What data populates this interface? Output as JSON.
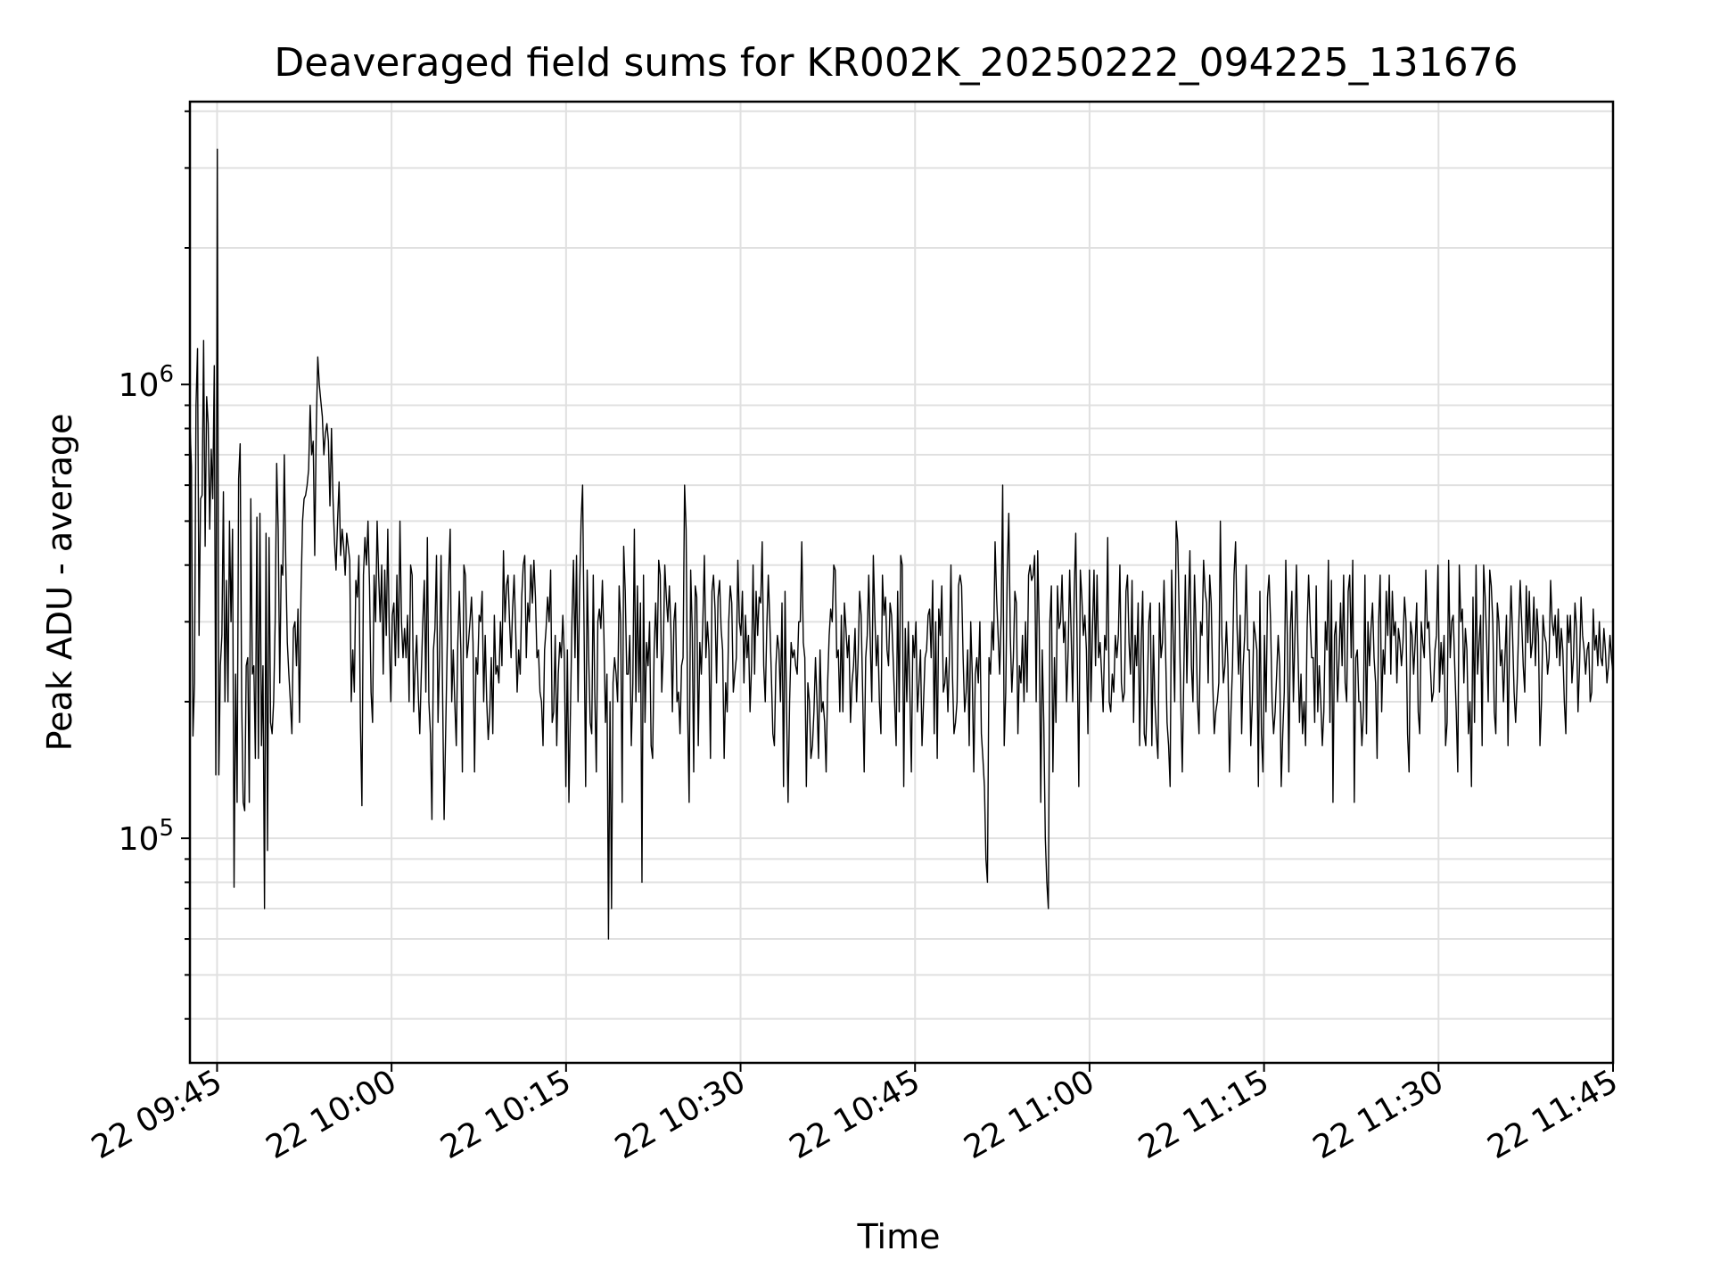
{
  "chart_data": {
    "type": "line",
    "title": "Deaveraged field sums for KR002K_20250222_094225_131676",
    "xlabel": "Time",
    "ylabel": "Peak ADU - average",
    "x_tick_labels": [
      "22 09:45",
      "22 10:00",
      "22 10:15",
      "22 10:30",
      "22 10:45",
      "22 11:00",
      "22 11:15",
      "22 11:30",
      "22 11:45"
    ],
    "y_tick_labels": [
      {
        "base": "10",
        "exp": "5",
        "value": 100000
      },
      {
        "base": "10",
        "exp": "6",
        "value": 1000000
      }
    ],
    "y_scale": "log",
    "ylim": [
      32000,
      4200000
    ],
    "xlim": [
      "2025-02-22T09:42:40",
      "2025-02-22T11:45:00"
    ],
    "grid": true,
    "line_color": "#000000",
    "series": [
      {
        "x_start": "2025-02-22T09:42:40",
        "x_end": "2025-02-22T11:45:00",
        "values": [
          820000,
          660000,
          168000,
          220000,
          900000,
          1200000,
          280000,
          560000,
          570000,
          1250000,
          440000,
          940000,
          820000,
          480000,
          720000,
          560000,
          1100000,
          138000,
          3300000,
          138000,
          240000,
          280000,
          580000,
          200000,
          370000,
          200000,
          500000,
          300000,
          480000,
          78000,
          230000,
          120000,
          620000,
          740000,
          200000,
          120000,
          115000,
          240000,
          250000,
          120000,
          560000,
          230000,
          240000,
          150000,
          510000,
          150000,
          520000,
          160000,
          240000,
          70000,
          470000,
          94000,
          460000,
          180000,
          170000,
          200000,
          300000,
          670000,
          480000,
          220000,
          400000,
          380000,
          700000,
          400000,
          270000,
          230000,
          200000,
          170000,
          290000,
          300000,
          240000,
          320000,
          180000,
          350000,
          500000,
          560000,
          570000,
          600000,
          650000,
          900000,
          700000,
          750000,
          420000,
          800000,
          1150000,
          1000000,
          920000,
          850000,
          700000,
          780000,
          820000,
          750000,
          540000,
          800000,
          560000,
          450000,
          390000,
          500000,
          610000,
          420000,
          480000,
          440000,
          380000,
          470000,
          440000,
          410000,
          200000,
          260000,
          210000,
          370000,
          340000,
          420000,
          180000,
          118000,
          380000,
          460000,
          400000,
          500000,
          360000,
          210000,
          180000,
          380000,
          300000,
          500000,
          380000,
          300000,
          400000,
          230000,
          390000,
          280000,
          480000,
          280000,
          200000,
          310000,
          330000,
          240000,
          380000,
          250000,
          500000,
          300000,
          250000,
          290000,
          250000,
          310000,
          200000,
          400000,
          380000,
          190000,
          240000,
          280000,
          210000,
          170000,
          230000,
          300000,
          370000,
          210000,
          460000,
          200000,
          170000,
          110000,
          260000,
          290000,
          420000,
          180000,
          250000,
          420000,
          210000,
          110000,
          170000,
          260000,
          380000,
          480000,
          200000,
          260000,
          200000,
          160000,
          270000,
          350000,
          260000,
          140000,
          400000,
          380000,
          250000,
          270000,
          300000,
          340000,
          270000,
          140000,
          250000,
          230000,
          310000,
          300000,
          350000,
          200000,
          280000,
          200000,
          165000,
          190000,
          250000,
          170000,
          310000,
          230000,
          240000,
          220000,
          300000,
          240000,
          430000,
          300000,
          360000,
          380000,
          300000,
          250000,
          320000,
          380000,
          290000,
          210000,
          260000,
          230000,
          340000,
          400000,
          420000,
          250000,
          330000,
          300000,
          400000,
          330000,
          410000,
          340000,
          250000,
          260000,
          210000,
          200000,
          160000,
          260000,
          290000,
          340000,
          300000,
          390000,
          180000,
          190000,
          280000,
          160000,
          230000,
          270000,
          250000,
          310000,
          250000,
          130000,
          260000,
          120000,
          190000,
          300000,
          410000,
          250000,
          420000,
          200000,
          350000,
          500000,
          600000,
          280000,
          130000,
          390000,
          250000,
          180000,
          170000,
          380000,
          210000,
          140000,
          300000,
          320000,
          290000,
          370000,
          280000,
          180000,
          230000,
          60000,
          200000,
          70000,
          220000,
          250000,
          230000,
          200000,
          360000,
          300000,
          120000,
          440000,
          350000,
          230000,
          230000,
          280000,
          160000,
          220000,
          480000,
          200000,
          360000,
          210000,
          330000,
          80000,
          380000,
          180000,
          270000,
          240000,
          300000,
          160000,
          150000,
          260000,
          330000,
          250000,
          410000,
          380000,
          210000,
          260000,
          400000,
          340000,
          300000,
          360000,
          290000,
          190000,
          300000,
          330000,
          200000,
          210000,
          170000,
          240000,
          250000,
          600000,
          480000,
          190000,
          120000,
          390000,
          290000,
          140000,
          360000,
          340000,
          160000,
          270000,
          230000,
          300000,
          420000,
          250000,
          300000,
          260000,
          150000,
          350000,
          380000,
          320000,
          220000,
          340000,
          370000,
          290000,
          260000,
          150000,
          220000,
          190000,
          300000,
          360000,
          330000,
          210000,
          230000,
          250000,
          410000,
          300000,
          280000,
          350000,
          220000,
          310000,
          250000,
          280000,
          190000,
          240000,
          400000,
          230000,
          350000,
          280000,
          340000,
          330000,
          450000,
          240000,
          200000,
          290000,
          380000,
          300000,
          230000,
          170000,
          160000,
          240000,
          280000,
          260000,
          200000,
          330000,
          130000,
          350000,
          190000,
          120000,
          200000,
          270000,
          250000,
          260000,
          240000,
          230000,
          300000,
          300000,
          450000,
          270000,
          250000,
          130000,
          220000,
          200000,
          150000,
          160000,
          190000,
          250000,
          200000,
          150000,
          260000,
          190000,
          200000,
          180000,
          140000,
          220000,
          280000,
          320000,
          300000,
          400000,
          390000,
          250000,
          260000,
          190000,
          310000,
          190000,
          330000,
          290000,
          250000,
          280000,
          180000,
          220000,
          240000,
          290000,
          200000,
          250000,
          350000,
          310000,
          210000,
          140000,
          250000,
          280000,
          380000,
          270000,
          200000,
          420000,
          310000,
          240000,
          280000,
          200000,
          170000,
          380000,
          310000,
          340000,
          260000,
          240000,
          330000,
          310000,
          250000,
          200000,
          160000,
          350000,
          190000,
          420000,
          400000,
          130000,
          290000,
          200000,
          300000,
          210000,
          140000,
          280000,
          250000,
          300000,
          190000,
          220000,
          260000,
          160000,
          200000,
          250000,
          260000,
          310000,
          320000,
          250000,
          370000,
          170000,
          300000,
          150000,
          320000,
          280000,
          360000,
          210000,
          220000,
          250000,
          190000,
          250000,
          400000,
          230000,
          170000,
          180000,
          200000,
          360000,
          380000,
          360000,
          250000,
          190000,
          210000,
          260000,
          160000,
          300000,
          230000,
          140000,
          230000,
          250000,
          220000,
          300000,
          170000,
          150000,
          130000,
          90000,
          80000,
          250000,
          230000,
          300000,
          260000,
          450000,
          340000,
          280000,
          230000,
          310000,
          600000,
          160000,
          210000,
          390000,
          520000,
          280000,
          210000,
          250000,
          350000,
          330000,
          170000,
          240000,
          220000,
          280000,
          200000,
          300000,
          210000,
          380000,
          400000,
          370000,
          380000,
          420000,
          200000,
          430000,
          290000,
          120000,
          260000,
          180000,
          100000,
          80000,
          70000,
          300000,
          360000,
          140000,
          250000,
          180000,
          360000,
          290000,
          300000,
          380000,
          270000,
          300000,
          200000,
          260000,
          390000,
          280000,
          200000,
          350000,
          470000,
          250000,
          130000,
          390000,
          340000,
          280000,
          310000,
          260000,
          170000,
          390000,
          200000,
          290000,
          390000,
          240000,
          380000,
          250000,
          270000,
          230000,
          190000,
          280000,
          260000,
          460000,
          200000,
          190000,
          230000,
          210000,
          280000,
          250000,
          280000,
          400000,
          220000,
          200000,
          210000,
          350000,
          380000,
          270000,
          230000,
          370000,
          180000,
          280000,
          240000,
          330000,
          160000,
          270000,
          350000,
          170000,
          160000,
          210000,
          300000,
          330000,
          160000,
          280000,
          200000,
          170000,
          150000,
          330000,
          250000,
          270000,
          370000,
          260000,
          180000,
          160000,
          130000,
          390000,
          280000,
          200000,
          500000,
          450000,
          310000,
          200000,
          140000,
          230000,
          380000,
          220000,
          320000,
          430000,
          240000,
          200000,
          380000,
          290000,
          200000,
          170000,
          300000,
          280000,
          410000,
          350000,
          330000,
          220000,
          380000,
          330000,
          220000,
          170000,
          190000,
          200000,
          220000,
          500000,
          280000,
          220000,
          240000,
          300000,
          240000,
          140000,
          190000,
          240000,
          380000,
          450000,
          290000,
          230000,
          310000,
          170000,
          240000,
          280000,
          400000,
          260000,
          260000,
          160000,
          200000,
          300000,
          280000,
          260000,
          130000,
          350000,
          170000,
          140000,
          280000,
          190000,
          340000,
          380000,
          300000,
          200000,
          170000,
          190000,
          230000,
          280000,
          240000,
          130000,
          170000,
          210000,
          410000,
          280000,
          140000,
          290000,
          350000,
          200000,
          280000,
          400000,
          260000,
          180000,
          230000,
          170000,
          200000,
          160000,
          290000,
          380000,
          300000,
          250000,
          250000,
          180000,
          360000,
          190000,
          240000,
          200000,
          160000,
          190000,
          300000,
          260000,
          410000,
          180000,
          370000,
          120000,
          280000,
          300000,
          200000,
          250000,
          330000,
          240000,
          380000,
          220000,
          200000,
          350000,
          380000,
          250000,
          410000,
          120000,
          250000,
          260000,
          200000,
          200000,
          160000,
          190000,
          380000,
          170000,
          300000,
          240000,
          290000,
          330000,
          250000,
          220000,
          150000,
          300000,
          380000,
          190000,
          260000,
          230000,
          350000,
          280000,
          380000,
          230000,
          350000,
          280000,
          300000,
          220000,
          290000,
          270000,
          240000,
          270000,
          340000,
          300000,
          170000,
          140000,
          300000,
          280000,
          230000,
          270000,
          330000,
          190000,
          170000,
          300000,
          270000,
          250000,
          390000,
          290000,
          300000,
          240000,
          200000,
          210000,
          260000,
          280000,
          400000,
          210000,
          270000,
          230000,
          280000,
          160000,
          180000,
          410000,
          250000,
          300000,
          310000,
          240000,
          190000,
          140000,
          400000,
          300000,
          320000,
          220000,
          290000,
          260000,
          170000,
          200000,
          130000,
          340000,
          180000,
          400000,
          230000,
          270000,
          310000,
          160000,
          400000,
          340000,
          270000,
          200000,
          390000,
          360000,
          300000,
          190000,
          170000,
          330000,
          300000,
          240000,
          260000,
          200000,
          250000,
          310000,
          160000,
          270000,
          360000,
          280000,
          210000,
          180000,
          220000,
          290000,
          370000,
          300000,
          240000,
          210000,
          360000,
          270000,
          350000,
          250000,
          270000,
          340000,
          240000,
          320000,
          280000,
          160000,
          200000,
          310000,
          280000,
          270000,
          230000,
          250000,
          370000,
          300000,
          280000,
          310000,
          250000,
          320000,
          240000,
          290000,
          260000,
          200000,
          170000,
          310000,
          270000,
          310000,
          220000,
          250000,
          330000,
          290000,
          190000,
          240000,
          340000,
          280000,
          260000,
          230000,
          260000,
          270000,
          200000,
          210000,
          320000,
          260000,
          280000,
          240000,
          300000,
          250000,
          240000,
          290000,
          260000,
          220000,
          240000,
          280000,
          250000,
          230000
        ]
      }
    ]
  }
}
